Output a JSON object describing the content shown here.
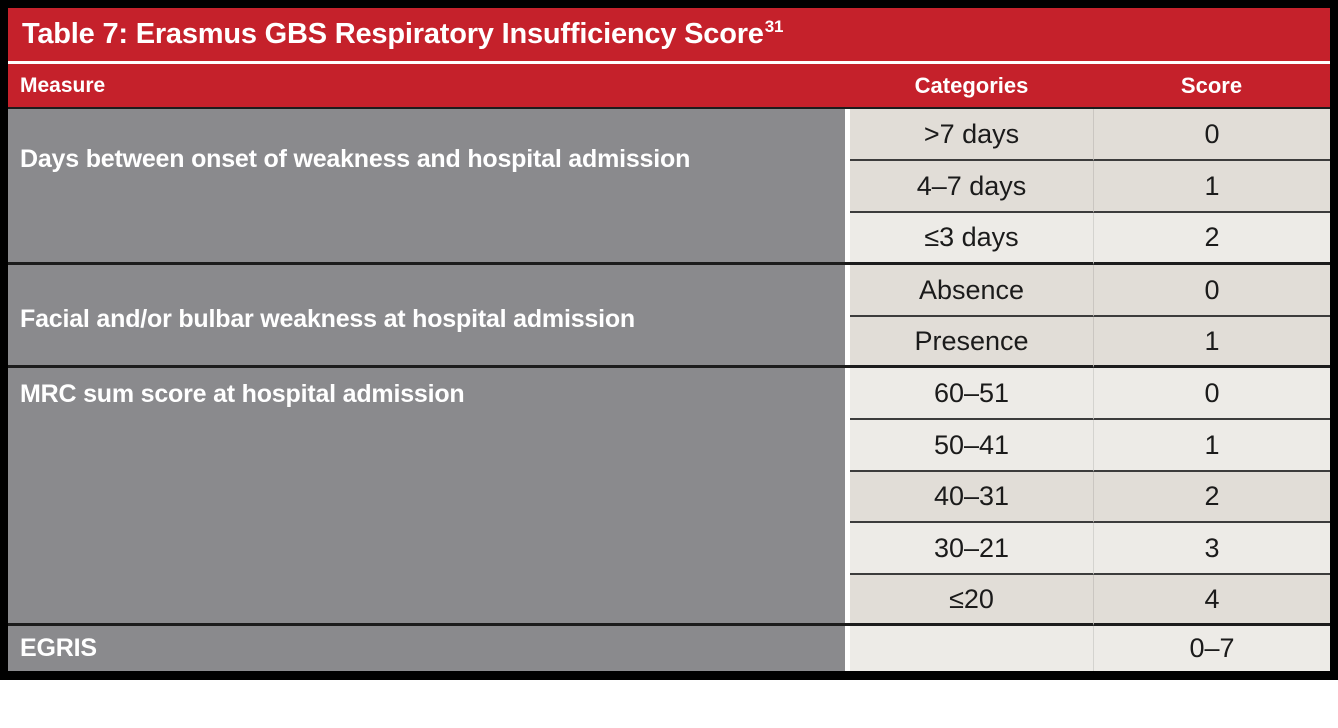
{
  "colors": {
    "red": "#c5212b",
    "gray": "#8a8a8d",
    "row-dark": "#e1ddd7",
    "row-light": "#edebe7",
    "line-strong": "#1c1c1c",
    "line-soft": "#3c3c3c",
    "text-dark": "#1b1b1b"
  },
  "title": {
    "text": "Table 7: Erasmus GBS Respiratory Insufficiency Score",
    "superscript": "31"
  },
  "header": {
    "measure": "Measure",
    "categories": "Categories",
    "score": "Score"
  },
  "groups": [
    {
      "measure": "Days between onset of weakness and hospital admission",
      "rows": [
        {
          "category": ">7 days",
          "score": "0"
        },
        {
          "category": "4–7 days",
          "score": "1"
        },
        {
          "category": "≤3 days",
          "score": "2"
        }
      ]
    },
    {
      "measure": "Facial and/or bulbar weakness at hospital admission",
      "rows": [
        {
          "category": "Absence",
          "score": "0"
        },
        {
          "category": "Presence",
          "score": "1"
        }
      ]
    },
    {
      "measure": "MRC sum score at hospital admission",
      "rows": [
        {
          "category": "60–51",
          "score": "0"
        },
        {
          "category": "50–41",
          "score": "1"
        },
        {
          "category": "40–31",
          "score": "2"
        },
        {
          "category": "30–21",
          "score": "3"
        },
        {
          "category": "≤20",
          "score": "4"
        }
      ]
    },
    {
      "measure": "EGRIS",
      "rows": [
        {
          "category": "",
          "score": "0–7"
        }
      ]
    }
  ]
}
